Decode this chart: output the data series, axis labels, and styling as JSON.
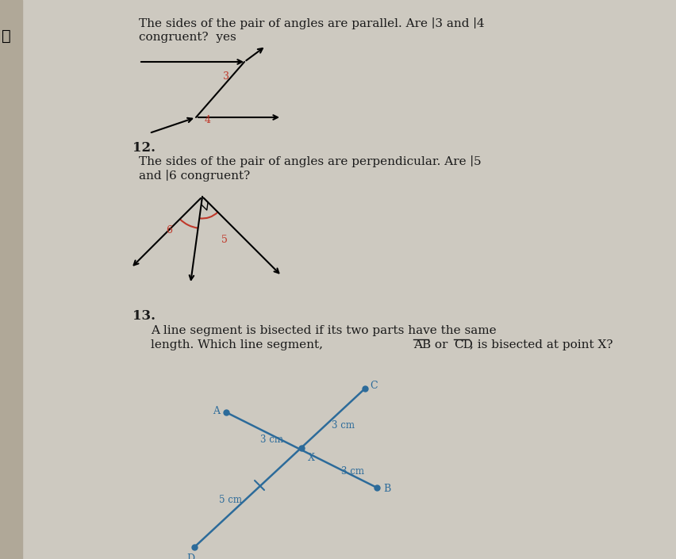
{
  "bg_color": "#cdc9c0",
  "text_color": "#1a1a1a",
  "title1": "The sides of the pair of angles are parallel. Are ∣3 and ∣4",
  "title1b": "congruent?  yes",
  "label12": "12.",
  "title2": "The sides of the pair of angles are perpendicular. Are ∣5",
  "title2b": "and ∣6 congruent?",
  "label13": "13.",
  "title3a": "A line segment is bisected if its two parts have the same",
  "title3b": "length. Which line segment, AB or CD, is bisected at point X?",
  "angle_label_color": "#c0392b",
  "line_color_diagram3": "#2c6b9a",
  "spine_color": "#b0a898"
}
